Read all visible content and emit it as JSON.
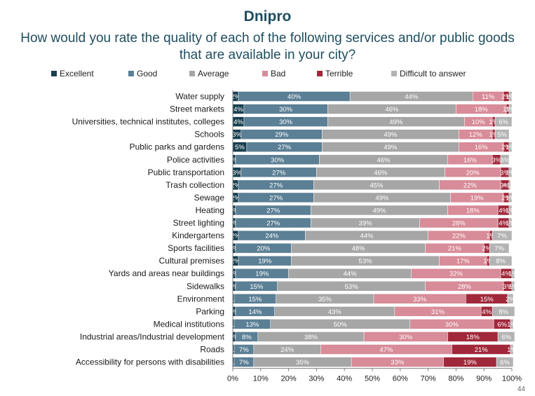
{
  "title": "Dnipro",
  "subtitle": "How would you rate the quality of each of the following services and/or public goods that are available in your city?",
  "page_number": "44",
  "colors": {
    "Excellent": "#173f50",
    "Good": "#5b7f95",
    "Average": "#a6a6a6",
    "Bad": "#d88b98",
    "Terrible": "#a0283a",
    "Difficult to answer": "#b3b3b3"
  },
  "chart_data": {
    "type": "bar",
    "orientation": "horizontal",
    "stacked": true,
    "xlim": [
      0,
      100
    ],
    "x_ticks": [
      "0%",
      "10%",
      "20%",
      "30%",
      "40%",
      "50%",
      "60%",
      "70%",
      "80%",
      "90%",
      "100%"
    ],
    "legend_position": "top",
    "grid": false,
    "categories": [
      "Water supply",
      "Street markets",
      "Universities, technical institutes, colleges",
      "Schools",
      "Public parks and gardens",
      "Police activities",
      "Public transportation",
      "Trash collection",
      "Sewage",
      "Heating",
      "Street lighting",
      "Kindergartens",
      "Sports facilities",
      "Cultural premises",
      "Yards and areas near buildings",
      "Sidewalks",
      "Environment",
      "Parking",
      "Medical institutions",
      "Industrial areas/Industrial development",
      "Roads",
      "Accessibility for persons with disabilities"
    ],
    "series": [
      {
        "name": "Excellent",
        "values": [
          2,
          4,
          4,
          3,
          5,
          1,
          3,
          2,
          2,
          1,
          1,
          2,
          1,
          2,
          1,
          1,
          0.5,
          1,
          0.5,
          1,
          0.5,
          0.5
        ],
        "labels": [
          "2%",
          "4%",
          "4%",
          "3%",
          "5%",
          "1%",
          "3%",
          "2%",
          "2%",
          "1%",
          "1%",
          "2%",
          "1%",
          "2%",
          "1%",
          "1%",
          "<1%",
          "1%",
          "<1%",
          "1%",
          "<1%",
          "<1%"
        ]
      },
      {
        "name": "Good",
        "values": [
          40,
          30,
          30,
          29,
          27,
          30,
          27,
          27,
          27,
          27,
          27,
          24,
          20,
          19,
          19,
          15,
          15,
          14,
          13,
          8,
          7,
          7
        ],
        "labels": [
          "40%",
          "30%",
          "30%",
          "29%",
          "27%",
          "30%",
          "27%",
          "27%",
          "27%",
          "27%",
          "27%",
          "24%",
          "20%",
          "19%",
          "19%",
          "15%",
          "15%",
          "14%",
          "13%",
          "8%",
          "7%",
          "7%"
        ]
      },
      {
        "name": "Average",
        "values": [
          44,
          46,
          49,
          49,
          49,
          46,
          46,
          45,
          49,
          49,
          39,
          44,
          48,
          53,
          44,
          53,
          35,
          43,
          50,
          38,
          24,
          35
        ],
        "labels": [
          "44%",
          "46%",
          "49%",
          "49%",
          "49%",
          "46%",
          "46%",
          "45%",
          "49%",
          "49%",
          "39%",
          "44%",
          "48%",
          "53%",
          "44%",
          "53%",
          "35%",
          "43%",
          "50%",
          "38%",
          "24%",
          "35%"
        ]
      },
      {
        "name": "Bad",
        "values": [
          11,
          18,
          10,
          12,
          16,
          16,
          20,
          22,
          19,
          18,
          28,
          22,
          21,
          17,
          32,
          28,
          33,
          31,
          30,
          30,
          47,
          33
        ],
        "labels": [
          "11%",
          "18%",
          "10%",
          "12%",
          "16%",
          "16%",
          "20%",
          "22%",
          "19%",
          "18%",
          "28%",
          "22%",
          "21%",
          "17%",
          "32%",
          "28%",
          "33%",
          "31%",
          "30%",
          "30%",
          "47%",
          "33%"
        ]
      },
      {
        "name": "Terrible",
        "values": [
          2,
          1,
          1,
          1,
          2,
          3,
          3,
          3,
          2,
          4,
          4,
          1,
          2,
          1,
          4,
          3,
          15,
          4,
          6,
          18,
          21,
          19
        ],
        "labels": [
          "2%",
          "1%",
          "1%",
          "1%",
          "2%",
          "3%",
          "3%",
          "3%",
          "2%",
          "4%",
          "4%",
          "1%",
          "2%",
          "1%",
          "4%",
          "3%",
          "15%",
          "4%",
          "6%",
          "18%",
          "21%",
          "19%"
        ]
      },
      {
        "name": "Difficult to answer",
        "values": [
          1,
          1,
          6,
          5,
          1,
          3,
          1,
          0.5,
          1,
          1,
          1,
          7,
          7,
          8,
          1,
          1,
          2,
          8,
          1,
          6,
          1,
          6
        ],
        "labels": [
          "1%",
          "1%",
          "6%",
          "5%",
          "1%",
          "3%",
          "1%",
          "<1%",
          "1%",
          "1%",
          "1%",
          "7%",
          "7%",
          "8%",
          "1%",
          "1%",
          "2%",
          "8%",
          "1%",
          "6%",
          "1%",
          "6%"
        ]
      }
    ]
  }
}
